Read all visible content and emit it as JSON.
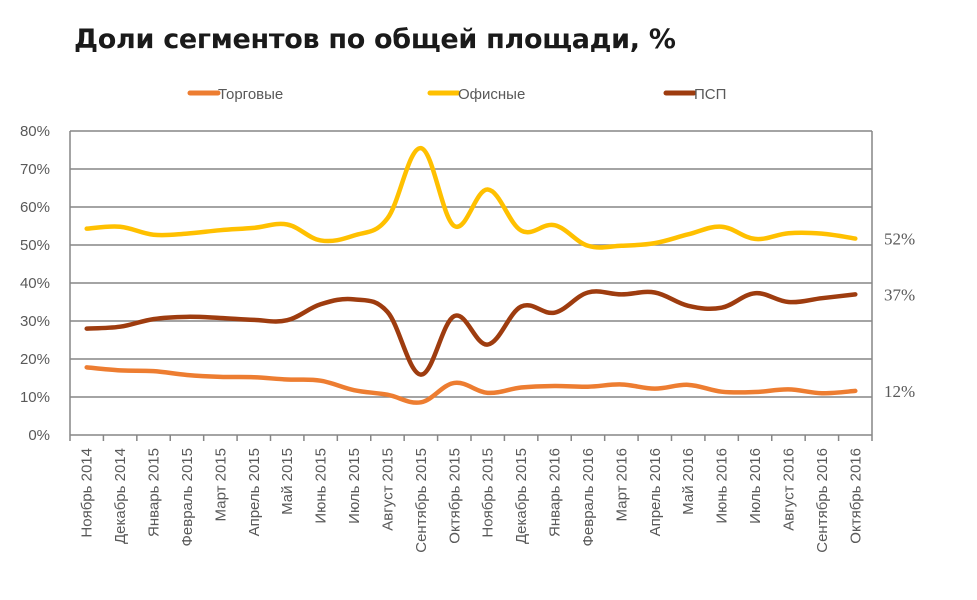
{
  "chart_data": {
    "type": "line",
    "title": "Доли сегментов по общей площади, %",
    "categories": [
      "Ноябрь 2014",
      "Декабрь 2014",
      "Январь 2015",
      "Февраль 2015",
      "Март 2015",
      "Апрель 2015",
      "Май 2015",
      "Июнь 2015",
      "Июль 2015",
      "Август 2015",
      "Сентябрь 2015",
      "Октябрь 2015",
      "Ноябрь 2015",
      "Декабрь 2015",
      "Январь 2016",
      "Февраль 2016",
      "Март 2016",
      "Апрель 2016",
      "Май 2016",
      "Июнь 2016",
      "Июль 2016",
      "Август 2016",
      "Сентябрь 2016",
      "Октябрь 2016"
    ],
    "y_ticks": [
      "0%",
      "10%",
      "20%",
      "30%",
      "40%",
      "50%",
      "60%",
      "70%",
      "80%"
    ],
    "ylim": [
      0,
      80
    ],
    "legend_position": "top",
    "series": [
      {
        "name": "Торговые",
        "color": "#ED7D31",
        "end_label": "12%",
        "values": [
          17.8,
          17.0,
          16.8,
          15.8,
          15.3,
          15.2,
          14.6,
          14.3,
          11.8,
          10.6,
          8.6,
          13.7,
          11.1,
          12.5,
          12.9,
          12.7,
          13.3,
          12.2,
          13.2,
          11.4,
          11.3,
          12.0,
          11.0,
          11.6
        ]
      },
      {
        "name": "Офисные",
        "color": "#FFC000",
        "end_label": "52%",
        "values": [
          54.3,
          54.8,
          52.7,
          53.0,
          53.9,
          54.5,
          55.4,
          51.2,
          52.5,
          57.0,
          75.5,
          55.0,
          64.6,
          53.8,
          55.2,
          49.8,
          49.8,
          50.5,
          52.8,
          54.8,
          51.6,
          53.1,
          53.0,
          51.7
        ]
      },
      {
        "name": "ПСП",
        "color": "#9E3C0F",
        "end_label": "37%",
        "values": [
          28.0,
          28.5,
          30.5,
          31.1,
          30.8,
          30.3,
          30.2,
          34.4,
          35.7,
          32.4,
          15.9,
          31.3,
          23.8,
          33.8,
          32.2,
          37.5,
          37.0,
          37.5,
          34.0,
          33.5,
          37.3,
          35.0,
          36.0,
          37.0
        ]
      }
    ]
  }
}
